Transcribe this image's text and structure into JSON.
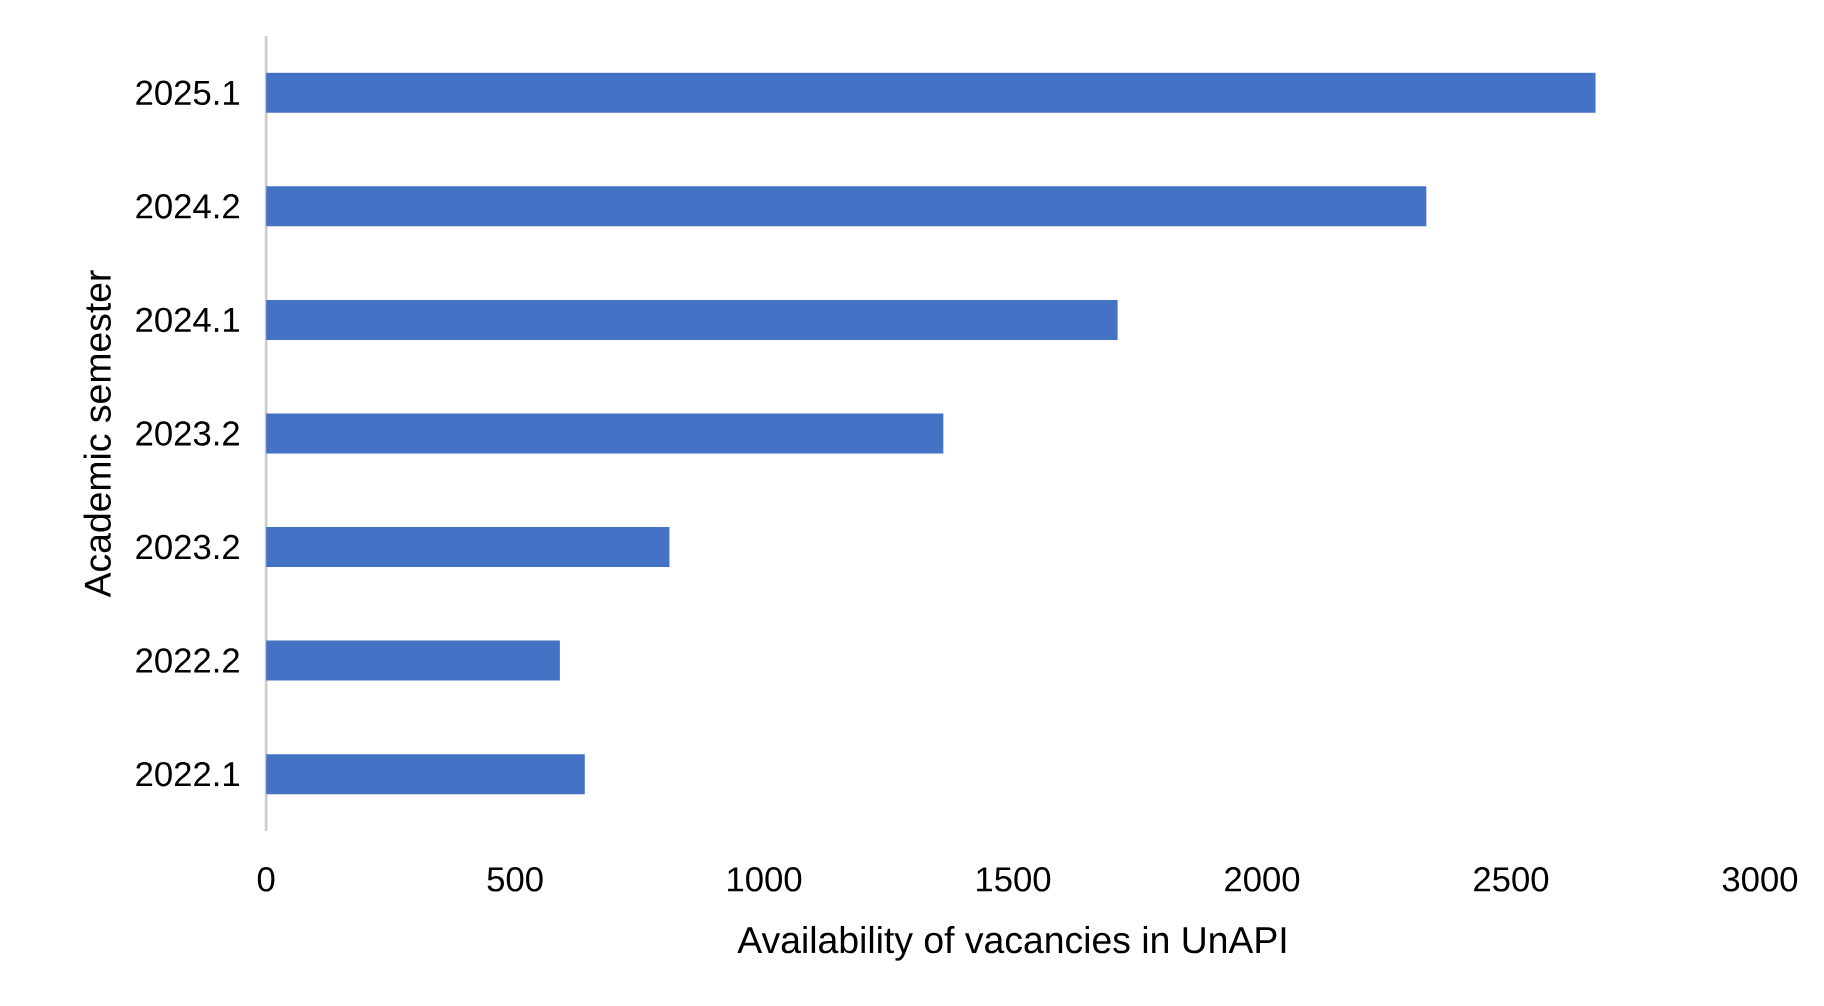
{
  "chart_data": {
    "type": "bar",
    "orientation": "horizontal",
    "categories": [
      "2025.1",
      "2024.2",
      "2024.1",
      "2023.2",
      "2023.2",
      "2022.2",
      "2022.1"
    ],
    "values": [
      2670,
      2330,
      1710,
      1360,
      810,
      590,
      640
    ],
    "color": "#4472c4",
    "xlabel": "Availability of vacancies in UnAPI",
    "ylabel": "Academic semester",
    "xlim": [
      0,
      3000
    ],
    "xticks": [
      0,
      500,
      1000,
      1500,
      2000,
      2500,
      3000
    ],
    "grid": false
  }
}
